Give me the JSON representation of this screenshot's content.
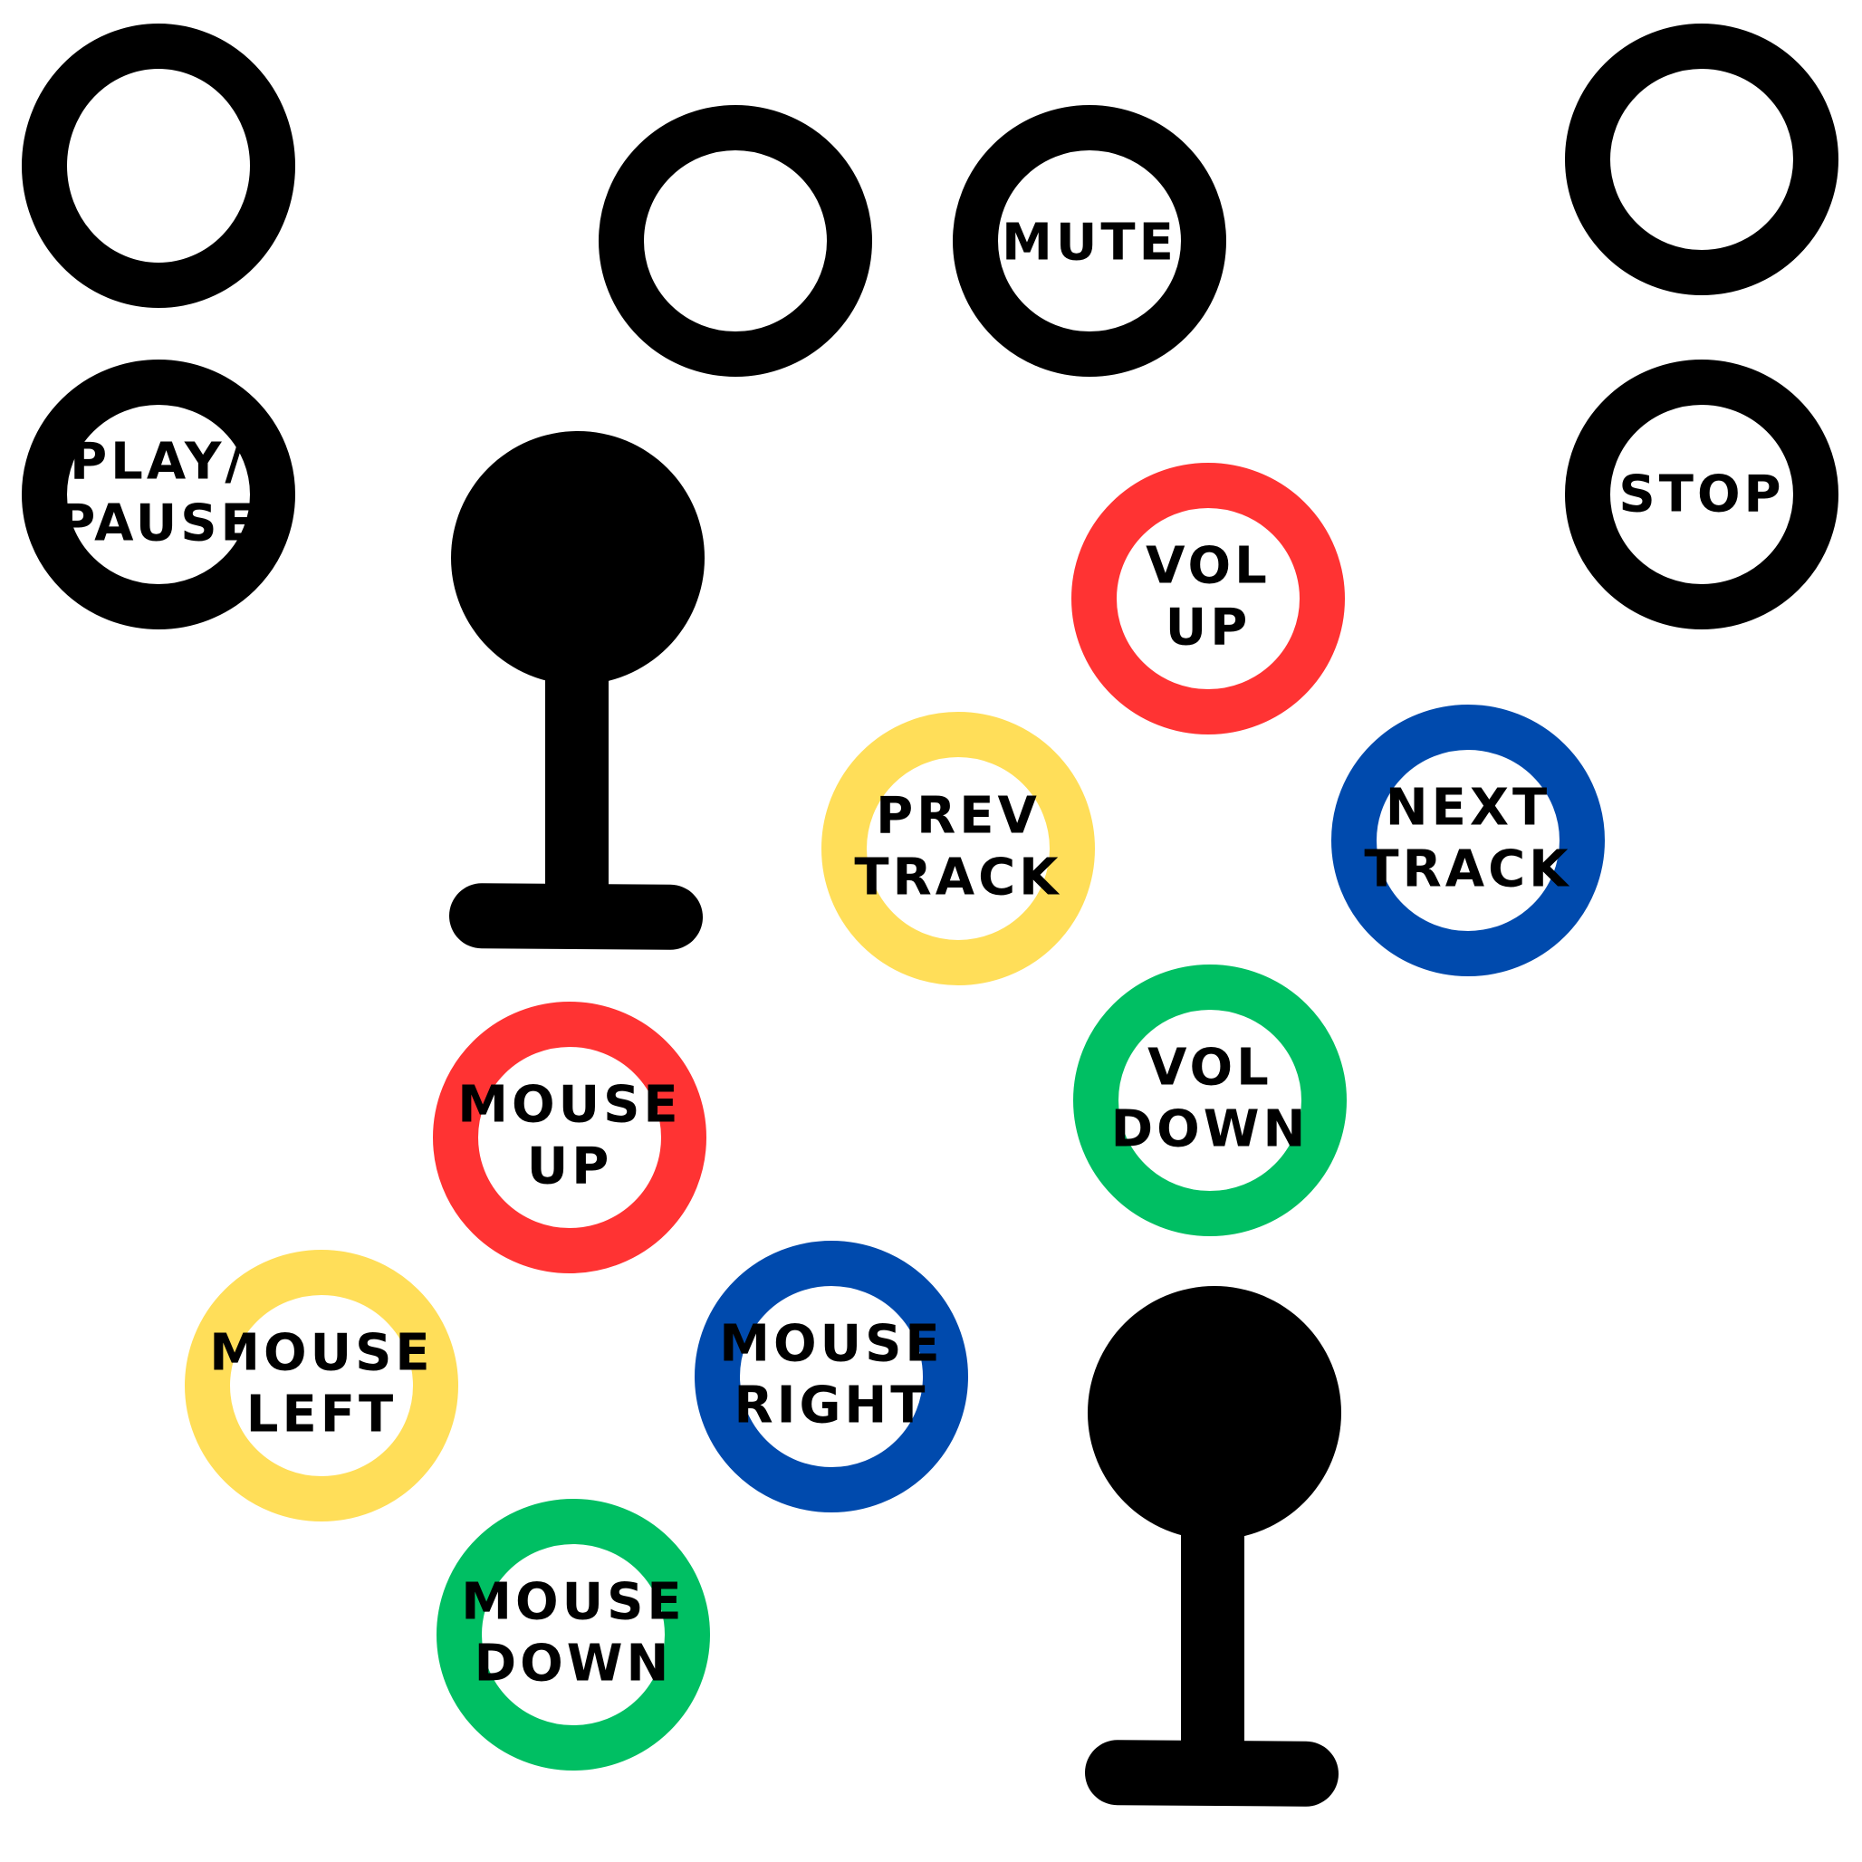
{
  "colors": {
    "black": "#000000",
    "red": "#FF3333",
    "yellow": "#FFDE59",
    "blue": "#004AAD",
    "green": "#00BF63"
  },
  "buttons": [
    {
      "id": "blank-top-left",
      "color": "black",
      "lines": []
    },
    {
      "id": "play-pause",
      "color": "black",
      "lines": [
        "PLAY/",
        "PAUSE"
      ]
    },
    {
      "id": "blank-top-center",
      "color": "black",
      "lines": []
    },
    {
      "id": "mute",
      "color": "black",
      "lines": [
        "MUTE"
      ]
    },
    {
      "id": "blank-top-right",
      "color": "black",
      "lines": []
    },
    {
      "id": "stop",
      "color": "black",
      "lines": [
        "STOP"
      ]
    },
    {
      "id": "vol-up",
      "color": "red",
      "lines": [
        "VOL",
        "UP"
      ]
    },
    {
      "id": "prev-track",
      "color": "yellow",
      "lines": [
        "PREV",
        "TRACK"
      ]
    },
    {
      "id": "next-track",
      "color": "blue",
      "lines": [
        "NEXT",
        "TRACK"
      ]
    },
    {
      "id": "vol-down",
      "color": "green",
      "lines": [
        "VOL",
        "DOWN"
      ]
    },
    {
      "id": "mouse-up",
      "color": "red",
      "lines": [
        "MOUSE",
        "UP"
      ]
    },
    {
      "id": "mouse-left",
      "color": "yellow",
      "lines": [
        "MOUSE",
        "LEFT"
      ]
    },
    {
      "id": "mouse-right",
      "color": "blue",
      "lines": [
        "MOUSE",
        "RIGHT"
      ]
    },
    {
      "id": "mouse-down",
      "color": "green",
      "lines": [
        "MOUSE",
        "DOWN"
      ]
    }
  ],
  "joysticks": [
    {
      "id": "joystick-upper",
      "icon": "joystick-icon"
    },
    {
      "id": "joystick-lower",
      "icon": "joystick-icon"
    }
  ]
}
